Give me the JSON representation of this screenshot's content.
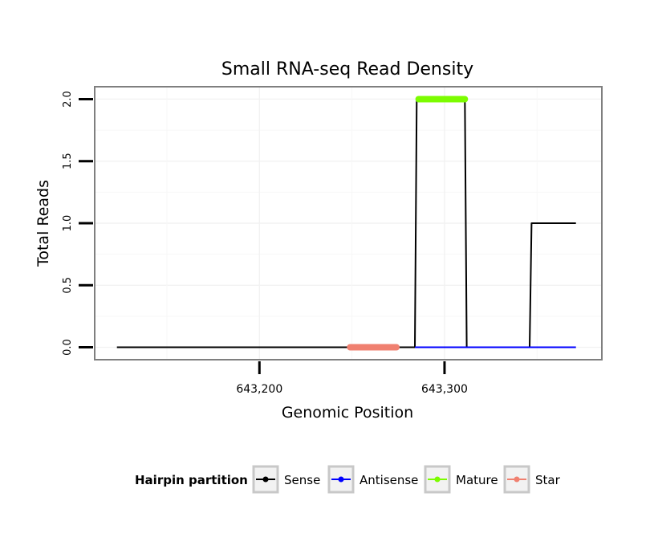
{
  "chart_data": {
    "type": "line",
    "title": "Small RNA-seq Read Density",
    "xlabel": "Genomic Position",
    "ylabel": "Total Reads",
    "xlim": [
      643111,
      643385
    ],
    "ylim": [
      -0.1,
      2.1
    ],
    "x_ticks": [
      643200,
      643300
    ],
    "x_tick_labels": [
      "643,200",
      "643,300"
    ],
    "y_ticks": [
      0.0,
      0.5,
      1.0,
      1.5,
      2.0
    ],
    "y_tick_labels": [
      "0.0",
      "0.5",
      "1.0",
      "1.5",
      "2.0"
    ],
    "grid": true,
    "legend": {
      "title": "Hairpin partition",
      "position": "bottom",
      "entries": [
        "Sense",
        "Antisense",
        "Mature",
        "Star"
      ]
    },
    "series": [
      {
        "name": "Sense",
        "color": "#000000",
        "x": [
          643123,
          643284,
          643285,
          643311,
          643312,
          643346,
          643347,
          643371
        ],
        "y": [
          0,
          0,
          2,
          2,
          0,
          0,
          1,
          1
        ]
      },
      {
        "name": "Antisense",
        "color": "#0000ff",
        "x": [
          643284,
          643371
        ],
        "y": [
          0,
          0
        ]
      },
      {
        "name": "Mature",
        "color": "#7cfc00",
        "x": [
          643286,
          643311
        ],
        "y": [
          2,
          2
        ]
      },
      {
        "name": "Star",
        "color": "#f08070",
        "x": [
          643249,
          643274
        ],
        "y": [
          0,
          0
        ]
      }
    ]
  }
}
